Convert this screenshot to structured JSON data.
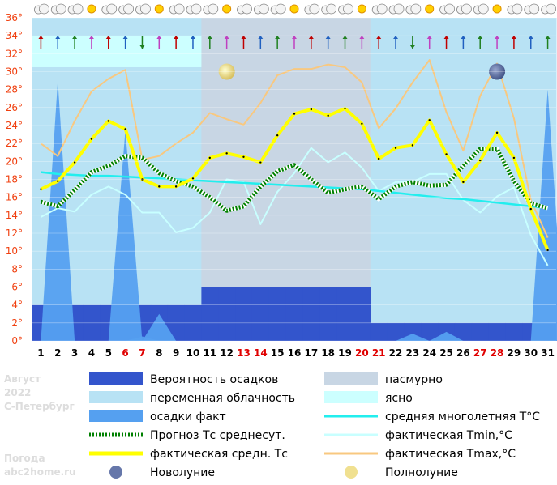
{
  "chart_data": {
    "type": "line",
    "days": [
      "1",
      "2",
      "3",
      "4",
      "5",
      "6",
      "7",
      "8",
      "9",
      "10",
      "11",
      "12",
      "13",
      "14",
      "15",
      "16",
      "17",
      "18",
      "19",
      "20",
      "21",
      "22",
      "23",
      "24",
      "25",
      "26",
      "27",
      "28",
      "29",
      "30",
      "31"
    ],
    "highlight_days": [
      "6",
      "7",
      "13",
      "14",
      "20",
      "21",
      "27",
      "28"
    ],
    "ylim": [
      0,
      36
    ],
    "yticks": [
      "0°",
      "2°",
      "4°",
      "6°",
      "8°",
      "10°",
      "12°",
      "14°",
      "16°",
      "18°",
      "20°",
      "22°",
      "24°",
      "26°",
      "28°",
      "30°",
      "32°",
      "34°",
      "36°"
    ],
    "series": [
      {
        "name": "Прогноз Тс среднесут.",
        "color": "#008000",
        "values": [
          15.5,
          15.0,
          16.8,
          18.8,
          19.5,
          20.6,
          20.4,
          18.7,
          17.8,
          17.2,
          16.0,
          14.5,
          15.0,
          17.2,
          18.9,
          19.6,
          18.0,
          16.5,
          16.9,
          17.2,
          15.8,
          17.2,
          17.7,
          17.3,
          17.4,
          19.5,
          21.4,
          21.4,
          17.8,
          15.3,
          14.8
        ]
      },
      {
        "name": "фактическая средн. Тс",
        "color": "#ffff00",
        "values": [
          16.9,
          17.8,
          19.9,
          22.5,
          24.5,
          23.6,
          18.0,
          17.2,
          17.2,
          18.1,
          20.4,
          20.9,
          20.5,
          19.9,
          22.9,
          25.3,
          25.8,
          25.1,
          25.9,
          24.2,
          20.3,
          21.5,
          21.8,
          24.6,
          20.8,
          17.7,
          20.1,
          23.2,
          20.4,
          14.7,
          10.1
        ]
      },
      {
        "name": "фактическая Tmax,°C",
        "color": "#f8c880",
        "values": [
          22.0,
          20.6,
          24.5,
          27.8,
          29.2,
          30.2,
          20.2,
          20.6,
          22.0,
          23.2,
          25.4,
          24.7,
          24.1,
          26.5,
          29.6,
          30.3,
          30.3,
          30.8,
          30.5,
          28.8,
          23.7,
          25.9,
          28.8,
          31.3,
          25.5,
          21.2,
          27.3,
          30.9,
          24.8,
          15.7,
          11.5
        ]
      },
      {
        "name": "фактическая Tmin,°C",
        "color": "#c8ffff",
        "values": [
          13.8,
          14.8,
          14.4,
          16.3,
          17.2,
          16.3,
          14.3,
          14.3,
          12.1,
          12.6,
          14.3,
          18.0,
          17.7,
          13.0,
          16.6,
          18.7,
          21.5,
          19.9,
          21.0,
          19.3,
          16.7,
          17.7,
          17.7,
          18.6,
          18.6,
          15.7,
          14.3,
          16.1,
          17.1,
          11.8,
          8.4
        ]
      },
      {
        "name": "средняя многолетняя T°C",
        "color": "#22eeee",
        "values": [
          18.8,
          18.6,
          18.5,
          18.4,
          18.4,
          18.3,
          18.2,
          18.1,
          18.0,
          17.9,
          17.8,
          17.7,
          17.6,
          17.5,
          17.4,
          17.3,
          17.2,
          17.1,
          17.0,
          16.9,
          16.7,
          16.5,
          16.3,
          16.1,
          15.9,
          15.8,
          15.6,
          15.4,
          15.2,
          15.0,
          14.8
        ]
      }
    ],
    "precip_prob": [
      4,
      4,
      4,
      4,
      4,
      4,
      4,
      4,
      4,
      4,
      6,
      6,
      6,
      6,
      6,
      6,
      6,
      6,
      6,
      6,
      2,
      2,
      2,
      2,
      2,
      2,
      2,
      2,
      2,
      2,
      2
    ],
    "precip_fact": [
      0,
      29,
      0,
      0,
      0,
      23.5,
      0.5,
      3,
      0,
      0,
      0,
      0,
      0,
      0,
      0,
      0,
      0,
      0,
      0,
      0,
      0,
      0,
      0.8,
      0,
      1,
      0,
      0,
      0,
      0,
      0,
      28
    ],
    "clouds": [
      "variable",
      "variable",
      "variable",
      "variable",
      "variable",
      "variable",
      "variable",
      "variable",
      "variable",
      "variable",
      "overcast",
      "overcast",
      "overcast",
      "overcast",
      "overcast",
      "overcast",
      "overcast",
      "overcast",
      "overcast",
      "overcast",
      "variable",
      "variable",
      "variable",
      "variable",
      "variable",
      "variable",
      "variable",
      "variable",
      "variable",
      "variable",
      "variable"
    ],
    "moon": {
      "full_moon_day": 12,
      "new_moon_day": 28
    },
    "wind_icons": [
      "up",
      "up",
      "up",
      "up",
      "up",
      "up",
      "down",
      "up",
      "up",
      "up",
      "up",
      "up",
      "up",
      "up",
      "up",
      "up",
      "up",
      "up",
      "up",
      "up",
      "up",
      "up",
      "down",
      "up",
      "up",
      "up",
      "up",
      "up",
      "up",
      "up",
      "up"
    ],
    "legend": [
      {
        "key": "precip_prob",
        "label": "Вероятность осадков",
        "color": "#3355cc",
        "kind": "box"
      },
      {
        "key": "overcast",
        "label": "пасмурно",
        "color": "#c8d6e4",
        "kind": "box"
      },
      {
        "key": "variable",
        "label": "переменная облачность",
        "color": "#b8e2f4",
        "kind": "box"
      },
      {
        "key": "clear",
        "label": "ясно",
        "color": "#ccffff",
        "kind": "box"
      },
      {
        "key": "precip_fact",
        "label": "осадки факт",
        "color": "#55a0f0",
        "kind": "box"
      },
      {
        "key": "climate",
        "label": "средняя многолетняя T°C",
        "color": "#22eeee",
        "kind": "line"
      },
      {
        "key": "forecast",
        "label": "Прогноз Тс среднесут.",
        "color": "#008000",
        "kind": "dotted"
      },
      {
        "key": "tmin",
        "label": "фактическая Tmin,°C",
        "color": "#c8ffff",
        "kind": "line"
      },
      {
        "key": "tavg",
        "label": "фактическая средн. Тс",
        "color": "#ffff00",
        "kind": "thick"
      },
      {
        "key": "tmax",
        "label": "фактическая Tmax,°C",
        "color": "#f8c880",
        "kind": "line"
      },
      {
        "key": "new_moon",
        "label": "Новолуние",
        "color": "#6677aa",
        "kind": "moon"
      },
      {
        "key": "full_moon",
        "label": "Полнолуние",
        "color": "#f0e090",
        "kind": "moon"
      }
    ]
  },
  "side_text": {
    "month": "Август",
    "year": "2022",
    "city": "С-Петербург",
    "brand1": "Погода",
    "brand2": "abc2home.ru"
  },
  "colors": {
    "variable": "#b8e2f4",
    "overcast": "#c8d6e4",
    "clear": "#ccffff",
    "precip_prob": "#3355cc",
    "precip_fact": "#55a0f0"
  }
}
